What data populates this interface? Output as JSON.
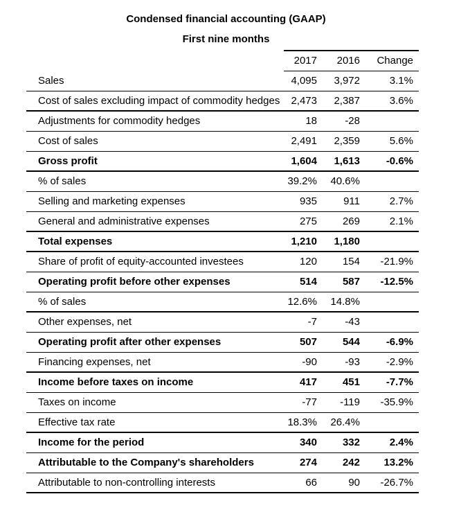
{
  "page": {
    "title": "Condensed financial accounting (GAAP)",
    "subtitle": "First nine months"
  },
  "table": {
    "columns": [
      "2017",
      "2016",
      "Change"
    ],
    "rows": [
      {
        "label": "Sales",
        "y2017": "4,095",
        "y2016": "3,972",
        "change": "3.1%",
        "bold": false,
        "rule": "thin"
      },
      {
        "label": "Cost of sales excluding impact of commodity hedges",
        "y2017": "2,473",
        "y2016": "2,387",
        "change": "3.6%",
        "bold": false,
        "rule": "thick"
      },
      {
        "label": "Adjustments for commodity hedges",
        "y2017": "18",
        "y2016": "-28",
        "change": "",
        "bold": false,
        "rule": "thin"
      },
      {
        "label": "Cost of sales",
        "y2017": "2,491",
        "y2016": "2,359",
        "change": "5.6%",
        "bold": false,
        "rule": "thin"
      },
      {
        "label": "Gross profit",
        "y2017": "1,604",
        "y2016": "1,613",
        "change": "-0.6%",
        "bold": true,
        "rule": "thick"
      },
      {
        "label": "% of sales",
        "y2017": "39.2%",
        "y2016": "40.6%",
        "change": "",
        "bold": false,
        "rule": "thin"
      },
      {
        "label": "Selling and marketing expenses",
        "y2017": "935",
        "y2016": "911",
        "change": "2.7%",
        "bold": false,
        "rule": "thin"
      },
      {
        "label": "General and administrative expenses",
        "y2017": "275",
        "y2016": "269",
        "change": "2.1%",
        "bold": false,
        "rule": "thick"
      },
      {
        "label": "Total expenses",
        "y2017": "1,210",
        "y2016": "1,180",
        "change": "",
        "bold": true,
        "rule": "thick"
      },
      {
        "label": "Share of profit of equity-accounted investees",
        "y2017": "120",
        "y2016": "154",
        "change": "-21.9%",
        "bold": false,
        "rule": "thin"
      },
      {
        "label": "Operating profit before other expenses",
        "y2017": "514",
        "y2016": "587",
        "change": "-12.5%",
        "bold": true,
        "rule": "thin"
      },
      {
        "label": "% of sales",
        "y2017": "12.6%",
        "y2016": "14.8%",
        "change": "",
        "bold": false,
        "rule": "thick"
      },
      {
        "label": "Other expenses, net",
        "y2017": "-7",
        "y2016": "-43",
        "change": "",
        "bold": false,
        "rule": "thin"
      },
      {
        "label": "Operating profit after other expenses",
        "y2017": "507",
        "y2016": "544",
        "change": "-6.9%",
        "bold": true,
        "rule": "thin"
      },
      {
        "label": "Financing expenses, net",
        "y2017": "-90",
        "y2016": "-93",
        "change": "-2.9%",
        "bold": false,
        "rule": "thick"
      },
      {
        "label": "Income before taxes on income",
        "y2017": "417",
        "y2016": "451",
        "change": "-7.7%",
        "bold": true,
        "rule": "thin"
      },
      {
        "label": "Taxes on income",
        "y2017": "-77",
        "y2016": "-119",
        "change": "-35.9%",
        "bold": false,
        "rule": "thin"
      },
      {
        "label": "Effective tax rate",
        "y2017": "18.3%",
        "y2016": "26.4%",
        "change": "",
        "bold": false,
        "rule": "thick"
      },
      {
        "label": "Income for the period",
        "y2017": "340",
        "y2016": "332",
        "change": "2.4%",
        "bold": true,
        "rule": "thin"
      },
      {
        "label": "Attributable to the Company's shareholders",
        "y2017": "274",
        "y2016": "242",
        "change": "13.2%",
        "bold": true,
        "rule": "thin"
      },
      {
        "label": "Attributable to non-controlling interests",
        "y2017": "66",
        "y2016": "90",
        "change": "-26.7%",
        "bold": false,
        "rule": "thick"
      }
    ]
  },
  "colors": {
    "text": "#000000",
    "rule": "#000000",
    "background": "#ffffff"
  }
}
